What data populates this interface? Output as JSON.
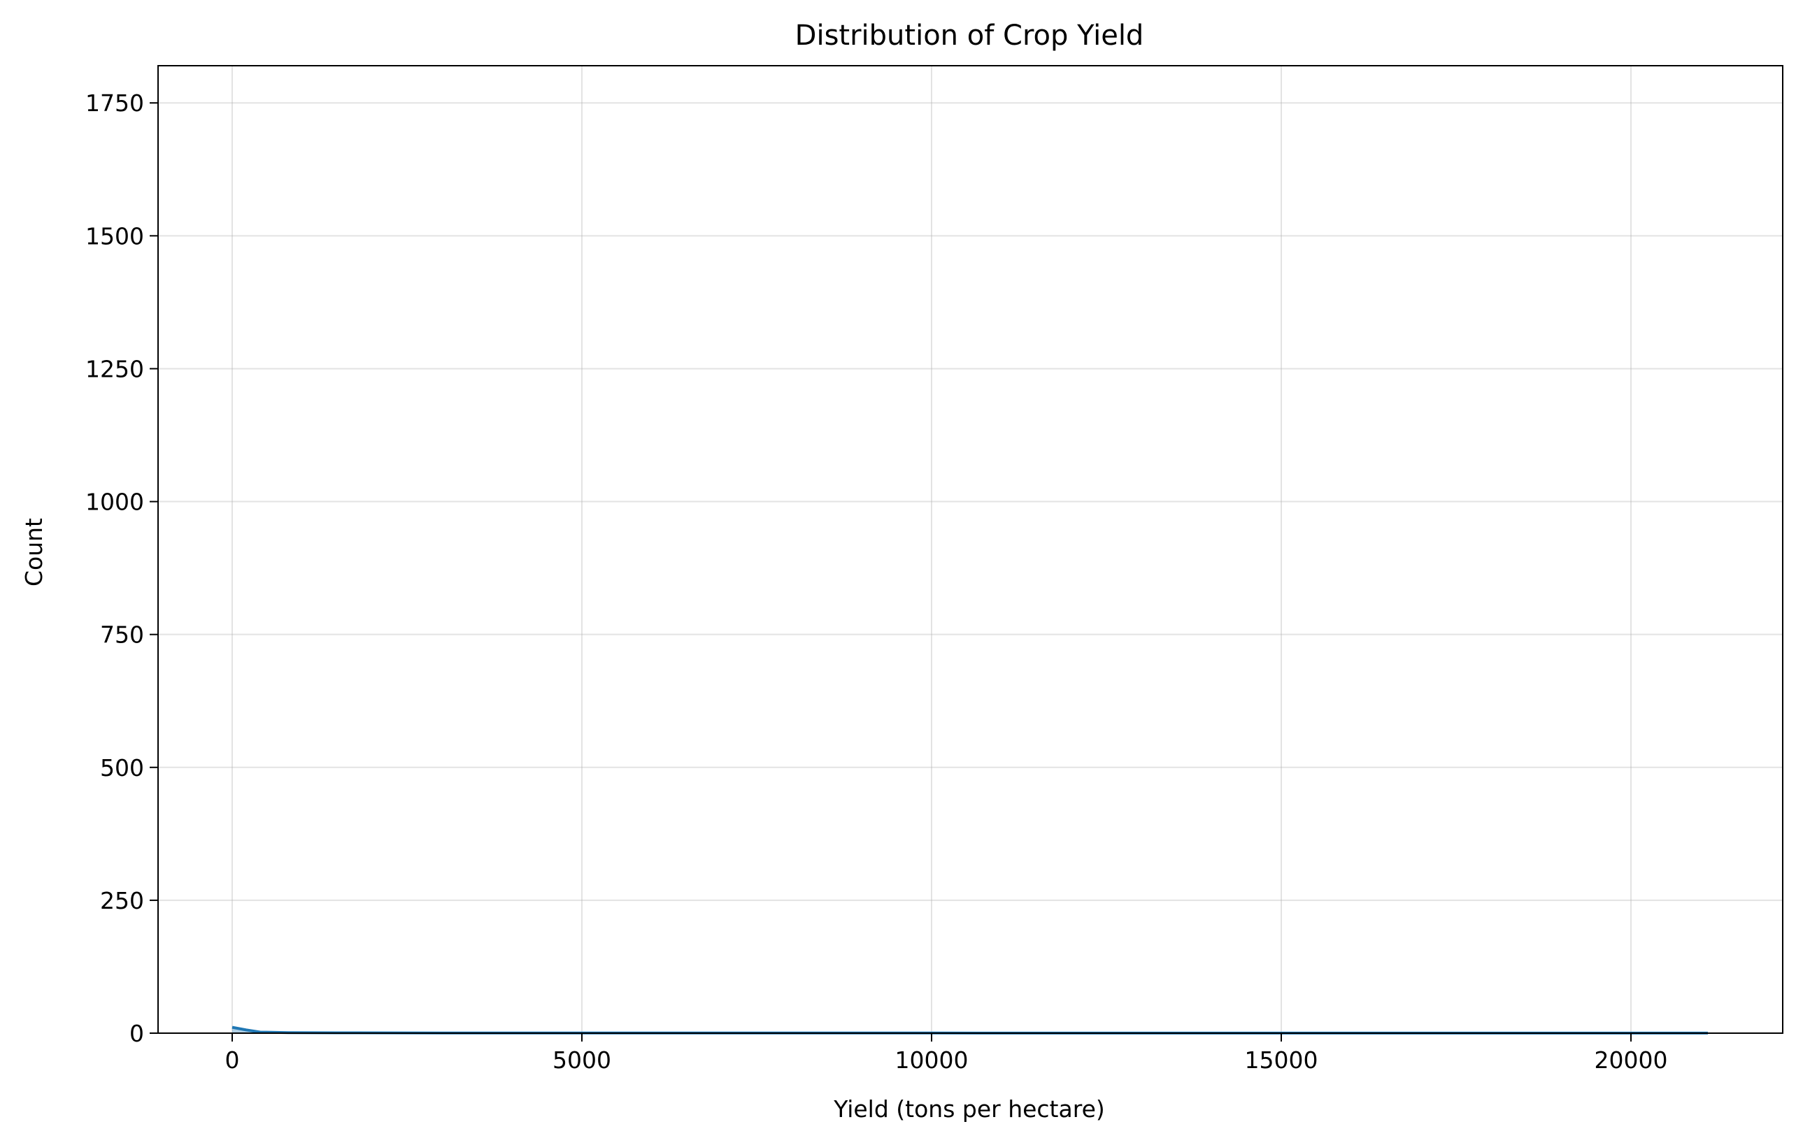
{
  "chart_data": {
    "type": "area",
    "title": "Distribution of Crop Yield",
    "xlabel": "Yield (tons per hectare)",
    "ylabel": "Count",
    "xlim": [
      -1060,
      22170
    ],
    "ylim": [
      0,
      1820
    ],
    "xticks": [
      0,
      5000,
      10000,
      15000,
      20000
    ],
    "yticks": [
      0,
      250,
      500,
      750,
      1000,
      1250,
      1500,
      1750
    ],
    "grid": true,
    "legend": "none",
    "series": [
      {
        "color": "#1f77b4",
        "x": [
          0,
          200,
          400,
          800,
          1500,
          3000,
          6000,
          10000,
          14000,
          18000,
          21100
        ],
        "y": [
          11,
          6,
          2,
          1,
          0.6,
          0.4,
          0.3,
          0.2,
          0.1,
          0.1,
          0.1
        ]
      }
    ]
  }
}
